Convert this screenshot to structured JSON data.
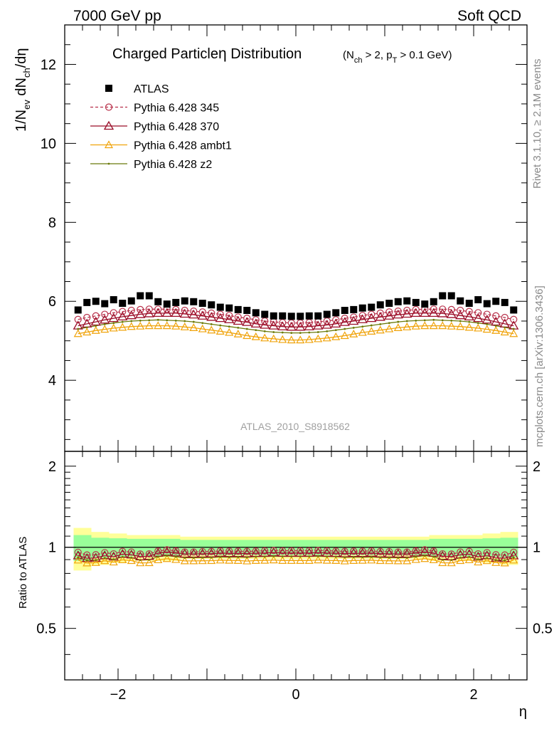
{
  "header": {
    "left": "7000 GeV pp",
    "right": "Soft QCD"
  },
  "title": {
    "main": "Charged Particle",
    "eta": "η",
    "rest": " Distribution",
    "cut": "(N",
    "cut_sub1": "ch",
    "cut_mid": " > 2, p",
    "cut_sub2": "T",
    "cut_end": " > 0.1 GeV)"
  },
  "side_labels": {
    "rivet": "Rivet 3.1.10, ≥ 2.1M events",
    "mcplots": "mcplots.cern.ch [arXiv:1306.3436]"
  },
  "analysis_id": "ATLAS_2010_S8918562",
  "colors": {
    "data": "#000000",
    "p345": "#b8304a",
    "p370": "#9a0e28",
    "ambt1": "#f0a30a",
    "z2": "#6b7a0a",
    "band_inner": "#99ff99",
    "band_outer": "#ffff99"
  },
  "chart_data": [
    {
      "type": "scatter",
      "ylabel": "1/N_ev dN_ch/dη",
      "ylim": [
        2.2,
        13.0
      ],
      "xlim": [
        -2.6,
        2.6
      ],
      "yticks": [
        "4",
        "6",
        "8",
        "10",
        "12"
      ],
      "x": [
        -2.45,
        -2.35,
        -2.25,
        -2.15,
        -2.05,
        -1.95,
        -1.85,
        -1.75,
        -1.65,
        -1.55,
        -1.45,
        -1.35,
        -1.25,
        -1.15,
        -1.05,
        -0.95,
        -0.85,
        -0.75,
        -0.65,
        -0.55,
        -0.45,
        -0.35,
        -0.25,
        -0.15,
        -0.05,
        0.05,
        0.15,
        0.25,
        0.35,
        0.45,
        0.55,
        0.65,
        0.75,
        0.85,
        0.95,
        1.05,
        1.15,
        1.25,
        1.35,
        1.45,
        1.55,
        1.65,
        1.75,
        1.85,
        1.95,
        2.05,
        2.15,
        2.25,
        2.35,
        2.45
      ],
      "series": [
        {
          "name": "ATLAS",
          "values": [
            5.78,
            5.97,
            6.0,
            5.94,
            6.04,
            5.95,
            6.01,
            6.14,
            6.14,
            5.99,
            5.93,
            5.97,
            6.01,
            5.99,
            5.95,
            5.91,
            5.85,
            5.83,
            5.79,
            5.77,
            5.71,
            5.67,
            5.63,
            5.63,
            5.62,
            5.62,
            5.63,
            5.63,
            5.67,
            5.71,
            5.77,
            5.79,
            5.83,
            5.85,
            5.91,
            5.95,
            5.99,
            6.01,
            5.97,
            5.93,
            5.99,
            6.14,
            6.14,
            6.01,
            5.95,
            6.04,
            5.94,
            6.0,
            5.97,
            5.78
          ]
        },
        {
          "name": "Pythia 6.428 345",
          "values": [
            5.54,
            5.59,
            5.63,
            5.67,
            5.71,
            5.74,
            5.77,
            5.79,
            5.8,
            5.8,
            5.8,
            5.79,
            5.77,
            5.75,
            5.73,
            5.7,
            5.67,
            5.64,
            5.6,
            5.57,
            5.53,
            5.5,
            5.48,
            5.46,
            5.45,
            5.45,
            5.46,
            5.48,
            5.5,
            5.53,
            5.57,
            5.6,
            5.64,
            5.67,
            5.7,
            5.73,
            5.75,
            5.77,
            5.79,
            5.8,
            5.8,
            5.8,
            5.79,
            5.77,
            5.74,
            5.71,
            5.67,
            5.63,
            5.59,
            5.54
          ]
        },
        {
          "name": "Pythia 6.428 370",
          "values": [
            5.38,
            5.43,
            5.48,
            5.53,
            5.57,
            5.61,
            5.64,
            5.67,
            5.69,
            5.7,
            5.7,
            5.7,
            5.68,
            5.66,
            5.63,
            5.6,
            5.57,
            5.54,
            5.5,
            5.47,
            5.43,
            5.4,
            5.38,
            5.36,
            5.35,
            5.35,
            5.36,
            5.38,
            5.4,
            5.43,
            5.47,
            5.5,
            5.54,
            5.57,
            5.6,
            5.63,
            5.66,
            5.68,
            5.7,
            5.7,
            5.7,
            5.69,
            5.67,
            5.64,
            5.61,
            5.57,
            5.53,
            5.48,
            5.43,
            5.38
          ]
        },
        {
          "name": "Pythia 6.428 ambt1",
          "values": [
            5.18,
            5.22,
            5.26,
            5.29,
            5.32,
            5.34,
            5.36,
            5.37,
            5.38,
            5.38,
            5.38,
            5.37,
            5.35,
            5.33,
            5.3,
            5.27,
            5.24,
            5.21,
            5.17,
            5.13,
            5.1,
            5.07,
            5.05,
            5.03,
            5.02,
            5.02,
            5.03,
            5.05,
            5.07,
            5.1,
            5.13,
            5.17,
            5.21,
            5.24,
            5.27,
            5.3,
            5.33,
            5.35,
            5.37,
            5.38,
            5.38,
            5.38,
            5.37,
            5.36,
            5.34,
            5.32,
            5.29,
            5.26,
            5.22,
            5.18
          ]
        },
        {
          "name": "Pythia 6.428 z2",
          "values": [
            5.3,
            5.34,
            5.38,
            5.42,
            5.45,
            5.48,
            5.5,
            5.51,
            5.52,
            5.53,
            5.52,
            5.51,
            5.5,
            5.48,
            5.45,
            5.42,
            5.39,
            5.36,
            5.33,
            5.3,
            5.27,
            5.24,
            5.22,
            5.21,
            5.2,
            5.2,
            5.21,
            5.22,
            5.24,
            5.27,
            5.3,
            5.33,
            5.36,
            5.39,
            5.42,
            5.45,
            5.48,
            5.5,
            5.51,
            5.52,
            5.53,
            5.52,
            5.51,
            5.5,
            5.48,
            5.45,
            5.42,
            5.38,
            5.34,
            5.3
          ]
        }
      ]
    },
    {
      "type": "scatter",
      "ylabel": "Ratio to ATLAS",
      "xlabel": "η",
      "ylim": [
        0.322,
        2.27
      ],
      "xlim": [
        -2.6,
        2.6
      ],
      "yscale": "log",
      "yticks": [
        "0.5",
        "1",
        "2"
      ],
      "xticks": [
        "−2",
        "0",
        "2"
      ],
      "x": [
        -2.45,
        -2.35,
        -2.25,
        -2.15,
        -2.05,
        -1.95,
        -1.85,
        -1.75,
        -1.65,
        -1.55,
        -1.45,
        -1.35,
        -1.25,
        -1.15,
        -1.05,
        -0.95,
        -0.85,
        -0.75,
        -0.65,
        -0.55,
        -0.45,
        -0.35,
        -0.25,
        -0.15,
        -0.05,
        0.05,
        0.15,
        0.25,
        0.35,
        0.45,
        0.55,
        0.65,
        0.75,
        0.85,
        0.95,
        1.05,
        1.15,
        1.25,
        1.35,
        1.45,
        1.55,
        1.65,
        1.75,
        1.85,
        1.95,
        2.05,
        2.15,
        2.25,
        2.35,
        2.45
      ],
      "band_edges": [
        -2.5,
        -2.3,
        -2.1,
        -1.9,
        -1.7,
        -1.5,
        -1.3,
        -1.1,
        -0.9,
        -0.7,
        -0.5,
        -0.3,
        -0.1,
        0.1,
        0.3,
        0.5,
        0.7,
        0.9,
        1.1,
        1.3,
        1.5,
        1.7,
        1.9,
        2.1,
        2.3,
        2.5
      ],
      "band_inner": [
        0.11,
        0.085,
        0.08,
        0.075,
        0.075,
        0.075,
        0.065,
        0.065,
        0.065,
        0.065,
        0.065,
        0.065,
        0.065,
        0.065,
        0.065,
        0.065,
        0.065,
        0.065,
        0.065,
        0.065,
        0.075,
        0.075,
        0.075,
        0.08,
        0.085,
        0.11
      ],
      "band_outer": [
        0.18,
        0.14,
        0.125,
        0.11,
        0.11,
        0.11,
        0.095,
        0.095,
        0.095,
        0.095,
        0.095,
        0.095,
        0.095,
        0.095,
        0.095,
        0.095,
        0.095,
        0.095,
        0.095,
        0.095,
        0.11,
        0.11,
        0.11,
        0.125,
        0.14,
        0.18
      ],
      "series": [
        {
          "name": "Pythia 6.428 345",
          "values": [
            0.958,
            0.936,
            0.938,
            0.955,
            0.945,
            0.965,
            0.96,
            0.943,
            0.945,
            0.968,
            0.978,
            0.97,
            0.96,
            0.96,
            0.963,
            0.964,
            0.969,
            0.967,
            0.967,
            0.965,
            0.968,
            0.97,
            0.973,
            0.97,
            0.97,
            0.97,
            0.97,
            0.973,
            0.97,
            0.968,
            0.965,
            0.967,
            0.967,
            0.969,
            0.964,
            0.963,
            0.96,
            0.96,
            0.97,
            0.978,
            0.968,
            0.945,
            0.943,
            0.96,
            0.965,
            0.945,
            0.955,
            0.938,
            0.936,
            0.958
          ]
        },
        {
          "name": "Pythia 6.428 370",
          "values": [
            0.931,
            0.91,
            0.913,
            0.931,
            0.922,
            0.943,
            0.938,
            0.923,
            0.927,
            0.952,
            0.961,
            0.955,
            0.945,
            0.945,
            0.946,
            0.947,
            0.952,
            0.95,
            0.95,
            0.948,
            0.951,
            0.952,
            0.956,
            0.952,
            0.952,
            0.952,
            0.952,
            0.956,
            0.952,
            0.951,
            0.948,
            0.95,
            0.95,
            0.952,
            0.947,
            0.946,
            0.945,
            0.945,
            0.955,
            0.961,
            0.952,
            0.927,
            0.923,
            0.938,
            0.943,
            0.922,
            0.931,
            0.913,
            0.91,
            0.931
          ]
        },
        {
          "name": "Pythia 6.428 ambt1",
          "values": [
            0.896,
            0.874,
            0.877,
            0.891,
            0.881,
            0.898,
            0.892,
            0.875,
            0.876,
            0.898,
            0.907,
            0.9,
            0.89,
            0.89,
            0.891,
            0.892,
            0.896,
            0.894,
            0.893,
            0.889,
            0.893,
            0.894,
            0.897,
            0.893,
            0.893,
            0.893,
            0.893,
            0.897,
            0.894,
            0.893,
            0.889,
            0.893,
            0.894,
            0.896,
            0.892,
            0.891,
            0.89,
            0.89,
            0.9,
            0.907,
            0.898,
            0.876,
            0.875,
            0.892,
            0.898,
            0.881,
            0.891,
            0.877,
            0.874,
            0.896
          ]
        },
        {
          "name": "Pythia 6.428 z2",
          "values": [
            0.917,
            0.895,
            0.897,
            0.912,
            0.902,
            0.921,
            0.915,
            0.897,
            0.899,
            0.923,
            0.931,
            0.923,
            0.915,
            0.915,
            0.916,
            0.917,
            0.921,
            0.919,
            0.92,
            0.918,
            0.923,
            0.924,
            0.927,
            0.925,
            0.925,
            0.925,
            0.925,
            0.927,
            0.924,
            0.923,
            0.918,
            0.92,
            0.919,
            0.921,
            0.917,
            0.916,
            0.915,
            0.915,
            0.923,
            0.931,
            0.923,
            0.899,
            0.897,
            0.915,
            0.921,
            0.902,
            0.912,
            0.897,
            0.895,
            0.917
          ]
        }
      ]
    }
  ]
}
